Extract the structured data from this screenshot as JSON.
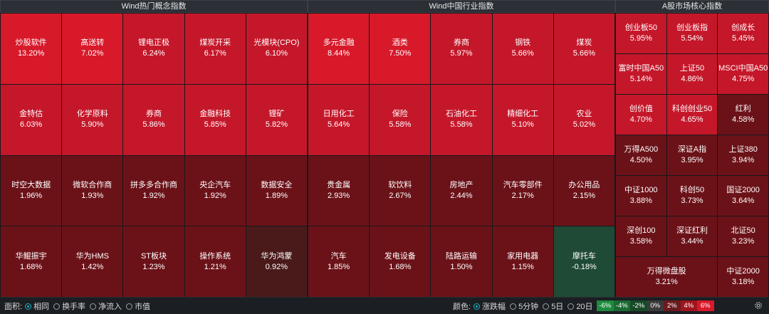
{
  "panels": [
    {
      "title": "Wind热门概念指数",
      "cols": 5,
      "rows": [
        [
          [
            "炒股软件",
            "13.20%"
          ],
          [
            "高送转",
            "7.02%"
          ],
          [
            "锂电正极",
            "6.24%"
          ],
          [
            "煤炭开采",
            "6.17%"
          ],
          [
            "光模块(CPO)",
            "6.10%"
          ]
        ],
        [
          [
            "金特估",
            "6.03%"
          ],
          [
            "化学原料",
            "5.90%"
          ],
          [
            "券商",
            "5.86%"
          ],
          [
            "金融科技",
            "5.85%"
          ],
          [
            "锂矿",
            "5.82%"
          ]
        ],
        [
          [
            "时空大数据",
            "1.96%"
          ],
          [
            "微软合作商",
            "1.93%"
          ],
          [
            "拼多多合作商",
            "1.92%"
          ],
          [
            "央企汽车",
            "1.92%"
          ],
          [
            "数据安全",
            "1.89%"
          ]
        ],
        [
          [
            "华鲲振宇",
            "1.68%"
          ],
          [
            "华为HMS",
            "1.42%"
          ],
          [
            "ST板块",
            "1.23%"
          ],
          [
            "操作系统",
            "1.21%"
          ],
          [
            "华为鸿蒙",
            "0.92%"
          ]
        ]
      ]
    },
    {
      "title": "Wind中国行业指数",
      "cols": 5,
      "rows": [
        [
          [
            "多元金融",
            "8.44%"
          ],
          [
            "酒类",
            "7.50%"
          ],
          [
            "券商",
            "5.97%"
          ],
          [
            "钢铁",
            "5.66%"
          ],
          [
            "煤炭",
            "5.66%"
          ]
        ],
        [
          [
            "日用化工",
            "5.64%"
          ],
          [
            "保险",
            "5.58%"
          ],
          [
            "石油化工",
            "5.58%"
          ],
          [
            "精细化工",
            "5.10%"
          ],
          [
            "农业",
            "5.02%"
          ]
        ],
        [
          [
            "贵金属",
            "2.93%"
          ],
          [
            "软饮料",
            "2.67%"
          ],
          [
            "房地产",
            "2.44%"
          ],
          [
            "汽车零部件",
            "2.17%"
          ],
          [
            "办公用品",
            "2.15%"
          ]
        ],
        [
          [
            "汽车",
            "1.85%"
          ],
          [
            "发电设备",
            "1.68%"
          ],
          [
            "陆路运输",
            "1.50%"
          ],
          [
            "家用电器",
            "1.15%"
          ],
          [
            "摩托车",
            "-0.18%"
          ]
        ]
      ]
    },
    {
      "title": "A股市场核心指数",
      "cols": 3,
      "rows": [
        [
          [
            "创业板50",
            "5.95%"
          ],
          [
            "创业板指",
            "5.54%"
          ],
          [
            "创成长",
            "5.45%"
          ]
        ],
        [
          [
            "富时中国A50",
            "5.14%"
          ],
          [
            "上证50",
            "4.86%"
          ],
          [
            "MSCI中国A50",
            "4.75%"
          ]
        ],
        [
          [
            "创价值",
            "4.70%"
          ],
          [
            "科创创业50",
            "4.65%"
          ],
          [
            "红利",
            "4.58%"
          ]
        ],
        [
          [
            "万得A500",
            "4.50%"
          ],
          [
            "深证A指",
            "3.95%"
          ],
          [
            "上证380",
            "3.94%"
          ]
        ],
        [
          [
            "中证1000",
            "3.88%"
          ],
          [
            "科创50",
            "3.73%"
          ],
          [
            "国证2000",
            "3.64%"
          ]
        ],
        [
          [
            "深创100",
            "3.58%"
          ],
          [
            "深证红利",
            "3.44%"
          ],
          [
            "北证50",
            "3.23%"
          ]
        ],
        [
          [
            "万得微盘股",
            "3.21%"
          ],
          [
            "中证2000",
            "3.18%"
          ]
        ]
      ]
    }
  ],
  "bottom": {
    "area_label": "面积:",
    "area_options": [
      "相同",
      "换手率",
      "净流入",
      "市值"
    ],
    "area_selected": 0,
    "color_label": "颜色:",
    "color_options": [
      "涨跌幅",
      "5分钟",
      "5日",
      "20日"
    ],
    "color_selected": 0,
    "legend": [
      "-6%",
      "-4%",
      "-2%",
      "0%",
      "2%",
      "4%",
      "6%"
    ]
  },
  "colors": {
    "up_strong": "#d7192a",
    "up_mid": "#c5172a",
    "up_weak": "#6b1218",
    "up_min": "#4a1a1a",
    "down": "#1f4a35",
    "legend": [
      "#1d8a3e",
      "#1a6a32",
      "#184a28",
      "#3a3a3a",
      "#6a1a1e",
      "#a0151c",
      "#d8192a"
    ]
  }
}
